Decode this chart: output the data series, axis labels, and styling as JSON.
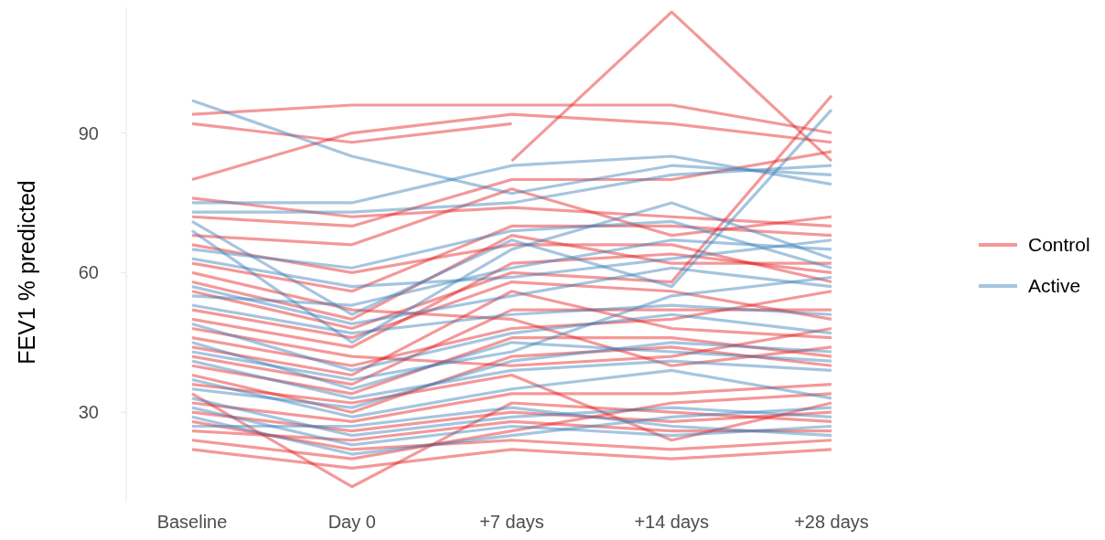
{
  "chart_data": {
    "type": "line",
    "ylabel": "FEV1 % predicted",
    "categories": [
      "Baseline",
      "Day 0",
      "+7 days",
      "+14 days",
      "+28 days"
    ],
    "ylim": [
      11,
      117
    ],
    "yticks": [
      30,
      60,
      90
    ],
    "legend": "right",
    "series": [
      {
        "name": "Control",
        "color": "#e41a1c",
        "values": [
          94,
          96,
          96,
          96,
          90
        ]
      },
      {
        "color": "#e41a1c",
        "values": [
          80,
          90,
          94,
          92,
          88
        ]
      },
      {
        "color": "#e41a1c",
        "values": [
          92,
          88,
          92,
          null,
          null
        ]
      },
      {
        "color": "#e41a1c",
        "values": [
          null,
          null,
          84,
          116,
          84
        ]
      },
      {
        "color": "#e41a1c",
        "values": [
          72,
          70,
          80,
          80,
          86
        ]
      },
      {
        "color": "#e41a1c",
        "values": [
          68,
          66,
          78,
          68,
          72
        ]
      },
      {
        "color": "#e41a1c",
        "values": [
          62,
          56,
          70,
          70,
          68
        ]
      },
      {
        "color": "#e41a1c",
        "values": [
          56,
          48,
          60,
          58,
          98
        ]
      },
      {
        "color": "#e41a1c",
        "values": [
          50,
          44,
          62,
          64,
          60
        ]
      },
      {
        "color": "#e41a1c",
        "values": [
          46,
          40,
          48,
          50,
          56
        ]
      },
      {
        "color": "#e41a1c",
        "values": [
          44,
          38,
          56,
          48,
          46
        ]
      },
      {
        "color": "#e41a1c",
        "values": [
          40,
          34,
          46,
          46,
          42
        ]
      },
      {
        "color": "#e41a1c",
        "values": [
          38,
          30,
          42,
          44,
          40
        ]
      },
      {
        "color": "#e41a1c",
        "values": [
          34,
          14,
          32,
          30,
          28
        ]
      },
      {
        "color": "#e41a1c",
        "values": [
          30,
          26,
          30,
          28,
          30
        ]
      },
      {
        "color": "#e41a1c",
        "values": [
          28,
          22,
          24,
          22,
          24
        ]
      },
      {
        "color": "#e41a1c",
        "values": [
          26,
          24,
          28,
          26,
          26
        ]
      },
      {
        "color": "#e41a1c",
        "values": [
          24,
          20,
          26,
          32,
          34
        ]
      },
      {
        "color": "#e41a1c",
        "values": [
          48,
          42,
          40,
          42,
          48
        ]
      },
      {
        "color": "#e41a1c",
        "values": [
          52,
          46,
          58,
          56,
          50
        ]
      },
      {
        "color": "#e41a1c",
        "values": [
          66,
          60,
          66,
          66,
          58
        ]
      },
      {
        "color": "#e41a1c",
        "values": [
          76,
          72,
          74,
          72,
          70
        ]
      },
      {
        "color": "#e41a1c",
        "values": [
          32,
          28,
          34,
          34,
          36
        ]
      },
      {
        "color": "#e41a1c",
        "values": [
          42,
          36,
          52,
          52,
          52
        ]
      },
      {
        "color": "#e41a1c",
        "values": [
          60,
          52,
          50,
          40,
          44
        ]
      },
      {
        "color": "#e41a1c",
        "values": [
          58,
          50,
          68,
          62,
          62
        ]
      },
      {
        "color": "#e41a1c",
        "values": [
          36,
          32,
          38,
          24,
          32
        ]
      },
      {
        "color": "#e41a1c",
        "values": [
          22,
          18,
          22,
          20,
          22
        ]
      },
      {
        "name": "Active",
        "color": "#377eb8",
        "values": [
          97,
          85,
          77,
          83,
          81
        ]
      },
      {
        "color": "#377eb8",
        "values": [
          75,
          75,
          83,
          85,
          79
        ]
      },
      {
        "color": "#377eb8",
        "values": [
          73,
          73,
          75,
          81,
          83
        ]
      },
      {
        "color": "#377eb8",
        "values": [
          71,
          51,
          67,
          57,
          95
        ]
      },
      {
        "color": "#377eb8",
        "values": [
          69,
          45,
          65,
          75,
          63
        ]
      },
      {
        "color": "#377eb8",
        "values": [
          65,
          61,
          69,
          71,
          61
        ]
      },
      {
        "color": "#377eb8",
        "values": [
          57,
          49,
          55,
          61,
          57
        ]
      },
      {
        "color": "#377eb8",
        "values": [
          55,
          53,
          61,
          67,
          65
        ]
      },
      {
        "color": "#377eb8",
        "values": [
          53,
          47,
          51,
          53,
          51
        ]
      },
      {
        "color": "#377eb8",
        "values": [
          49,
          39,
          47,
          51,
          47
        ]
      },
      {
        "color": "#377eb8",
        "values": [
          45,
          35,
          45,
          43,
          41
        ]
      },
      {
        "color": "#377eb8",
        "values": [
          41,
          33,
          39,
          41,
          39
        ]
      },
      {
        "color": "#377eb8",
        "values": [
          37,
          29,
          35,
          39,
          33
        ]
      },
      {
        "color": "#377eb8",
        "values": [
          33,
          25,
          29,
          31,
          29
        ]
      },
      {
        "color": "#377eb8",
        "values": [
          31,
          23,
          27,
          25,
          27
        ]
      },
      {
        "color": "#377eb8",
        "values": [
          29,
          21,
          25,
          29,
          31
        ]
      },
      {
        "color": "#377eb8",
        "values": [
          35,
          31,
          41,
          45,
          43
        ]
      },
      {
        "color": "#377eb8",
        "values": [
          43,
          37,
          43,
          55,
          59
        ]
      },
      {
        "color": "#377eb8",
        "values": [
          63,
          57,
          59,
          63,
          67
        ]
      },
      {
        "color": "#377eb8",
        "values": [
          27,
          27,
          31,
          27,
          25
        ]
      }
    ]
  }
}
